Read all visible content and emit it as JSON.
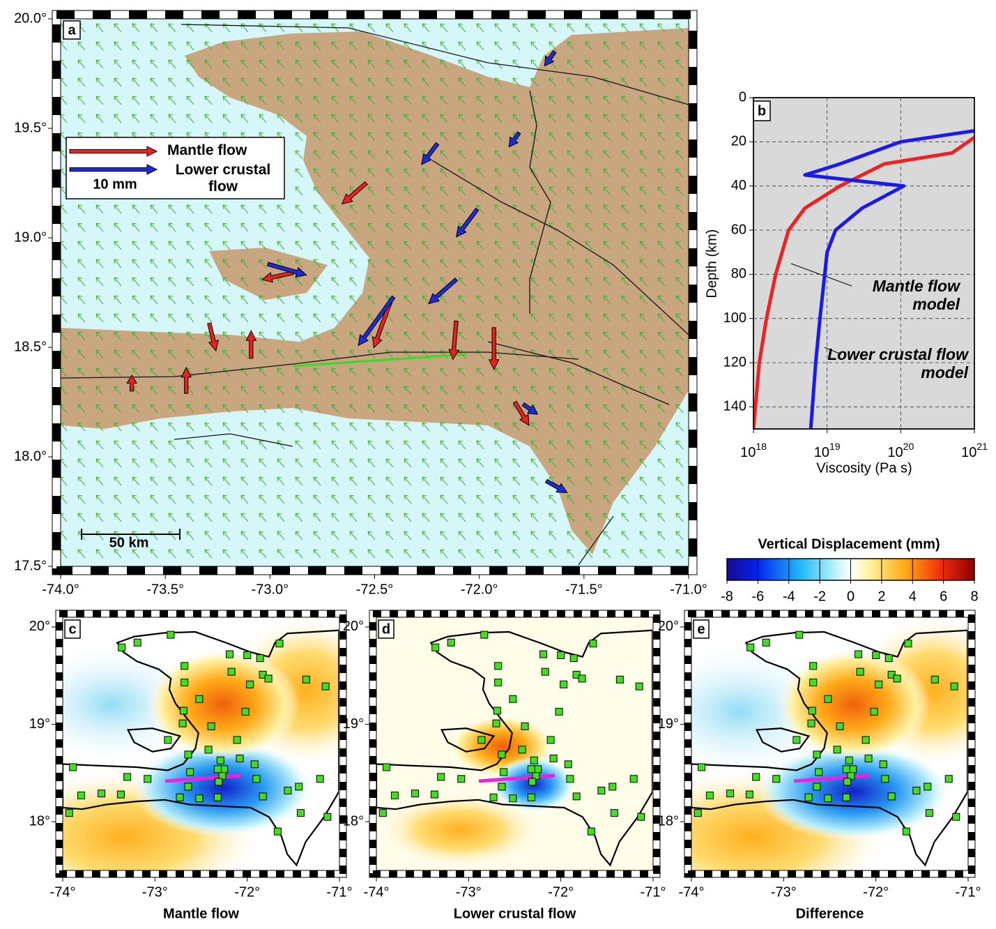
{
  "chart_data": [
    {
      "type": "map",
      "panel": "a",
      "xlim": [
        -74,
        -71
      ],
      "ylim": [
        17.5,
        20
      ],
      "xticks": [
        {
          "value": -74,
          "label": "-74.0°"
        },
        {
          "value": -73.5,
          "label": "-73.5°"
        },
        {
          "value": -73,
          "label": "-73.0°"
        },
        {
          "value": -72.5,
          "label": "-72.5°"
        },
        {
          "value": -72,
          "label": "-72.0°"
        },
        {
          "value": -71.5,
          "label": "-71.5°"
        },
        {
          "value": -71,
          "label": "-71.0°"
        }
      ],
      "yticks": [
        {
          "value": 17.5,
          "label": "17.5°"
        },
        {
          "value": 18,
          "label": "18.0°"
        },
        {
          "value": 18.5,
          "label": "18.5°"
        },
        {
          "value": 19,
          "label": "19.0°"
        },
        {
          "value": 19.5,
          "label": "19.5°"
        },
        {
          "value": 20,
          "label": "20.0°"
        }
      ],
      "legend_scale": "10 mm",
      "scale_bar": "50 km",
      "series": [
        {
          "name": "Mantle flow",
          "color": "#e8231c",
          "x": [
            -72.89,
            -72.54,
            -72.42,
            -72.11,
            -71.93,
            -71.83,
            -73.29,
            -73.09,
            -73.4,
            -73.66
          ],
          "y": [
            18.84,
            19.25,
            18.72,
            18.62,
            18.59,
            18.25,
            18.61,
            18.45,
            18.29,
            18.3
          ],
          "u": [
            -3.7,
            -2.9,
            -2.1,
            -0.4,
            0,
            1.7,
            0.8,
            0,
            0,
            0
          ],
          "v": [
            -0.8,
            -2.5,
            -5.8,
            -4.6,
            -5,
            -2.8,
            -3.3,
            3.3,
            3.1,
            1.9
          ]
        },
        {
          "name": "Lower crustal flow",
          "color": "#1f2bd6",
          "x": [
            -73.01,
            -72.41,
            -72.01,
            -72.11,
            -72.2,
            -71.81,
            -71.79,
            -71.68,
            -71.64
          ],
          "y": [
            18.88,
            18.73,
            19.13,
            18.81,
            19.43,
            19.48,
            18.24,
            17.89,
            19.85
          ],
          "u": [
            4.6,
            -4.2,
            -2.5,
            -3.3,
            -1.9,
            -1.2,
            1.7,
            2.5,
            -1.2
          ],
          "v": [
            -1.3,
            -5.8,
            -3.3,
            -2.9,
            -2.5,
            -1.7,
            -1.2,
            -1.4,
            -1.7
          ]
        }
      ]
    },
    {
      "type": "line",
      "panel": "b",
      "x_label": "Viscosity (Pa s)",
      "y_label": "Depth (km)",
      "xlog": true,
      "y_inverted": true,
      "grid": true,
      "xlim": [
        1e+18,
        1e+21
      ],
      "ylim": [
        0,
        150
      ],
      "xticks": [
        {
          "value": 1e+18,
          "label": "10",
          "sup": "18"
        },
        {
          "value": 1e+19,
          "label": "10",
          "sup": "19"
        },
        {
          "value": 1e+20,
          "label": "10",
          "sup": "20"
        },
        {
          "value": 1e+21,
          "label": "10",
          "sup": "21"
        }
      ],
      "yticks": [
        0,
        20,
        40,
        60,
        80,
        100,
        120,
        140
      ],
      "series": [
        {
          "name": "Mantle flow model",
          "color": "#ee2222",
          "x": [
            1e+21,
            5e+20,
            6e+19,
            1.5e+19,
            5e+18,
            3e+18,
            2e+18,
            1.5e+18,
            1.2e+18,
            1e+18
          ],
          "y": [
            18,
            25,
            30,
            40,
            50,
            60,
            80,
            100,
            120,
            150
          ]
        },
        {
          "name": "Lower crustal flow model",
          "color": "#1a1aee",
          "x": [
            1e+21,
            1e+20,
            1.5e+19,
            5e+18,
            1.1e+20,
            3e+19,
            1.3e+19,
            1e+19,
            8e+18,
            7e+18,
            6e+18
          ],
          "y": [
            15,
            20,
            30,
            35,
            40,
            50,
            60,
            70,
            100,
            120,
            150
          ]
        }
      ]
    },
    {
      "type": "colorbar",
      "title": "Vertical Displacement (mm)",
      "lim": [
        -8,
        8
      ],
      "ticks": [
        -8,
        -6,
        -4,
        -2,
        0,
        2,
        4,
        6,
        8
      ]
    },
    {
      "type": "map",
      "panel": "c",
      "title": "Mantle flow",
      "xlim": [
        -74,
        -71
      ],
      "ylim": [
        17.5,
        20.1
      ],
      "xticks": [
        {
          "value": -74,
          "label": "-74°"
        },
        {
          "value": -73,
          "label": "-73°"
        },
        {
          "value": -72,
          "label": "-72°"
        },
        {
          "value": -71,
          "label": "-71°"
        }
      ],
      "yticks": [
        {
          "value": 18,
          "label": "18°"
        },
        {
          "value": 19,
          "label": "19°"
        },
        {
          "value": 20,
          "label": "20°"
        }
      ],
      "stations": {
        "color": "#44dd22",
        "x": [
          -73.36,
          -73.19,
          -72.83,
          -72.68,
          -72.68,
          -72.19,
          -72.0,
          -71.65,
          -71.86,
          -71.83,
          -71.77,
          -72.17,
          -71.97,
          -71.36,
          -71.15,
          -72.52,
          -72.69,
          -72.02,
          -72.7,
          -72.39,
          -72.11,
          -72.86,
          -72.64,
          -72.42,
          -72.29,
          -72.25,
          -72.27,
          -72.08,
          -71.92,
          -72.32,
          -72.62,
          -73.3,
          -73.08,
          -73.89,
          -71.9,
          -72.31,
          -71.21,
          -71.44,
          -71.56,
          -72.64,
          -71.42,
          -71.13,
          -73.8,
          -73.58,
          -73.37,
          -72.73,
          -72.32,
          -72.52,
          -73.93,
          -71.83,
          -71.67
        ],
        "y": [
          19.79,
          19.84,
          19.92,
          19.6,
          19.43,
          19.72,
          19.71,
          19.83,
          19.68,
          19.51,
          19.47,
          19.54,
          19.41,
          19.46,
          19.39,
          19.26,
          19.14,
          19.13,
          19.01,
          18.98,
          18.84,
          18.84,
          18.69,
          18.74,
          18.63,
          18.54,
          18.47,
          18.65,
          18.59,
          18.54,
          18.51,
          18.46,
          18.44,
          18.56,
          18.44,
          18.41,
          18.44,
          18.36,
          18.32,
          18.36,
          18.09,
          18.05,
          18.27,
          18.29,
          18.28,
          18.25,
          18.25,
          18.24,
          18.09,
          18.26,
          17.9
        ]
      }
    },
    {
      "type": "map",
      "panel": "d",
      "title": "Lower crustal flow",
      "xlim": [
        -74,
        -71
      ],
      "ylim": [
        17.5,
        20.1
      ],
      "xticks": [
        {
          "value": -74,
          "label": "-74°"
        },
        {
          "value": -73,
          "label": "-73°"
        },
        {
          "value": -72,
          "label": "-72°"
        },
        {
          "value": -71,
          "label": "-71°"
        }
      ],
      "yticks": [
        {
          "value": 18,
          "label": "18°"
        },
        {
          "value": 19,
          "label": "19°"
        },
        {
          "value": 20,
          "label": "20°"
        }
      ]
    },
    {
      "type": "map",
      "panel": "e",
      "title": "Difference",
      "xlim": [
        -74,
        -71
      ],
      "ylim": [
        17.5,
        20.1
      ],
      "xticks": [
        {
          "value": -74,
          "label": "-74°"
        },
        {
          "value": -73,
          "label": "-73°"
        },
        {
          "value": -72,
          "label": "-72°"
        },
        {
          "value": -71,
          "label": "-71°"
        }
      ],
      "yticks": [
        {
          "value": 18,
          "label": "18°"
        },
        {
          "value": 19,
          "label": "19°"
        },
        {
          "value": 20,
          "label": "20°"
        }
      ]
    }
  ]
}
